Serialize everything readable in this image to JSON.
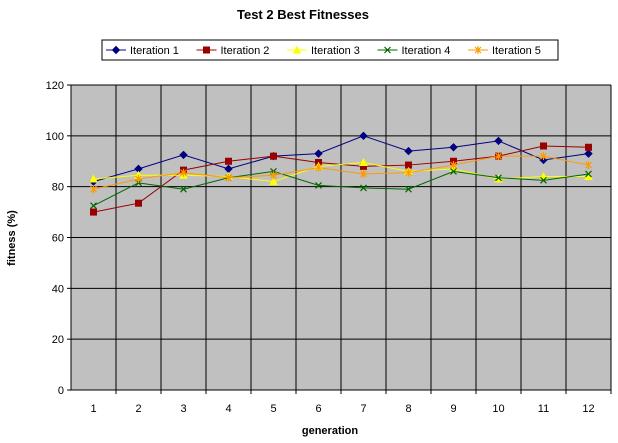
{
  "chart_data": {
    "type": "line",
    "title": "Test 2 Best Fitnesses",
    "xlabel": "generation",
    "ylabel": "fitness (%)",
    "x": [
      1,
      2,
      3,
      4,
      5,
      6,
      7,
      8,
      9,
      10,
      11,
      12
    ],
    "ylim": [
      0,
      120
    ],
    "yticks": [
      0,
      20,
      40,
      60,
      80,
      100,
      120
    ],
    "grid": true,
    "plot_background": "#C0C0C0",
    "legend_position": "top",
    "series": [
      {
        "name": "Iteration 1",
        "color": "#000080",
        "marker": "diamond",
        "values": [
          82,
          87,
          92.5,
          87,
          92,
          93,
          100,
          94,
          95.5,
          98,
          90.5,
          93
        ]
      },
      {
        "name": "Iteration 2",
        "color": "#990000",
        "marker": "square",
        "values": [
          70,
          73.5,
          86.5,
          90,
          92,
          89.5,
          88,
          88.5,
          90,
          92,
          96,
          95.5
        ]
      },
      {
        "name": "Iteration 3",
        "color": "#FFFF00",
        "marker": "triangle",
        "values": [
          83,
          84.5,
          84.5,
          84,
          82,
          88,
          89.5,
          86,
          87,
          83,
          84,
          84
        ]
      },
      {
        "name": "Iteration 4",
        "color": "#006600",
        "marker": "x",
        "values": [
          72.5,
          81.5,
          79,
          83.5,
          86,
          80.5,
          79.5,
          79,
          86,
          83.5,
          82.5,
          85
        ]
      },
      {
        "name": "Iteration 5",
        "color": "#FF9900",
        "marker": "star",
        "values": [
          79,
          83,
          85.5,
          83.5,
          84.5,
          87.5,
          85,
          85.5,
          88.5,
          92,
          92,
          88.5
        ]
      }
    ]
  }
}
